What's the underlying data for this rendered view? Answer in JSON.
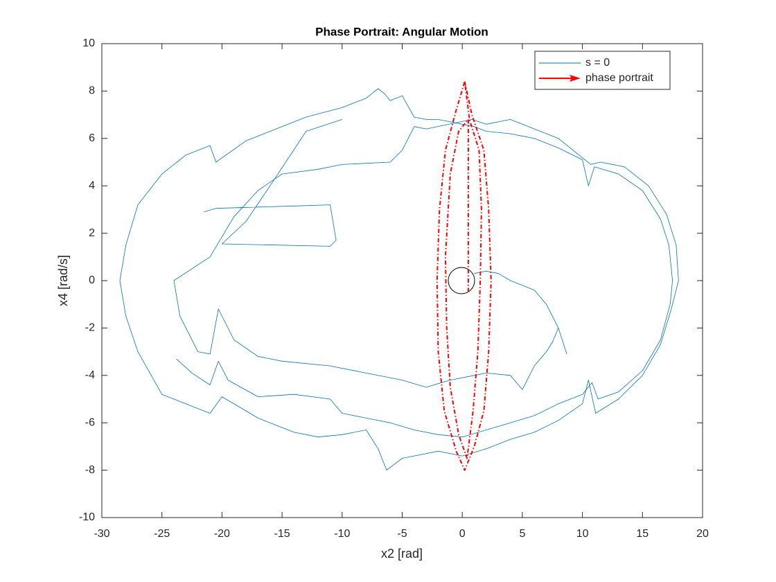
{
  "chart_data": {
    "type": "line",
    "title": "Phase Portrait: Angular Motion",
    "x_label": "x2 [rad]",
    "y_label": "x4 [rad/s]",
    "xlim": [
      -30,
      20
    ],
    "ylim": [
      -10,
      10
    ],
    "xticks": [
      -30,
      -25,
      -20,
      -15,
      -10,
      -5,
      0,
      5,
      10,
      15,
      20
    ],
    "yticks": [
      -10,
      -8,
      -6,
      -4,
      -2,
      0,
      2,
      4,
      6,
      8,
      10
    ],
    "grid": false,
    "legend": "upper right",
    "series": [
      {
        "name": "s = 0",
        "color": "#0072bd",
        "style": "solid",
        "x": [
          -23.8,
          -22.5,
          -21,
          -20.3,
          -19.5,
          -17,
          -14,
          -11,
          -10,
          -8,
          -6,
          -4,
          -2,
          0,
          2,
          4,
          6,
          8,
          10,
          10.8,
          11.3,
          13,
          15,
          16.5,
          17.3,
          17.5,
          17.2,
          16.5,
          15,
          13,
          11,
          10.5,
          10,
          8,
          6,
          4,
          2,
          1,
          0,
          -2,
          -3,
          -4,
          -5,
          -6,
          -6.5,
          -7,
          -8,
          -10,
          -13,
          -16,
          -18,
          -20.5,
          -21,
          -23,
          -25,
          -27,
          -28,
          -28.5,
          -28,
          -27,
          -25,
          -22,
          -21,
          -20,
          -17,
          -14,
          -12,
          -10,
          -8,
          -7,
          -6.3,
          -5,
          -4,
          -2,
          0,
          2,
          4,
          6,
          8,
          10,
          10.5,
          11.1,
          13,
          15,
          16.5,
          17.4,
          18,
          17.8,
          17,
          15.5,
          13.5,
          11.5,
          10.7,
          8,
          6,
          4,
          2,
          0.8,
          -3,
          -4,
          -5,
          -6,
          -10,
          -12,
          -15,
          -17,
          -19,
          -21,
          -24,
          -23.5,
          -22,
          -21,
          -20.3,
          -19,
          -17,
          -15,
          -11,
          -8,
          -5,
          -3,
          -1,
          1,
          2,
          4,
          5,
          6,
          7,
          7.5,
          8,
          8.7,
          null,
          1,
          2,
          3,
          4,
          5,
          6,
          7,
          8,
          8.7,
          null,
          -21.5,
          -20.5,
          -14,
          -11,
          -10.5,
          -11,
          -20,
          -18,
          -16,
          -13,
          -10
        ],
        "y": [
          -3.3,
          -3.9,
          -4.4,
          -3.4,
          -4.2,
          -4.9,
          -4.8,
          -5.0,
          -5.6,
          -5.8,
          -6.0,
          -6.3,
          -6.5,
          -6.6,
          -6.3,
          -6.0,
          -5.7,
          -5.2,
          -4.8,
          -4.3,
          -5.0,
          -4.7,
          -3.8,
          -2.5,
          -1.0,
          0,
          1.5,
          2.6,
          3.8,
          4.5,
          4.8,
          4.0,
          5.1,
          5.6,
          6.0,
          6.2,
          6.3,
          6.5,
          6.6,
          6.8,
          6.8,
          6.9,
          7.8,
          7.6,
          7.9,
          8.1,
          7.7,
          7.3,
          6.9,
          6.3,
          5.9,
          5.0,
          5.7,
          5.3,
          4.5,
          3.2,
          1.5,
          0,
          -1.5,
          -3.0,
          -4.8,
          -5.4,
          -5.6,
          -4.9,
          -5.8,
          -6.4,
          -6.6,
          -6.5,
          -6.3,
          -7.1,
          -8.0,
          -7.5,
          -7.4,
          -7.2,
          -7.4,
          -7.1,
          -6.7,
          -6.4,
          -5.9,
          -5.2,
          -4.2,
          -5.6,
          -5.0,
          -4.0,
          -2.7,
          -1.2,
          0,
          1.5,
          2.8,
          4.0,
          4.8,
          5.0,
          4.9,
          6.0,
          6.4,
          6.8,
          6.6,
          6.8,
          6.4,
          6.5,
          5.5,
          5.0,
          4.9,
          4.7,
          4.5,
          3.8,
          2.7,
          1.0,
          0,
          -1.5,
          -3.0,
          -3.1,
          -1.2,
          -2.5,
          -3.2,
          -3.4,
          -3.6,
          -3.9,
          -4.2,
          -4.5,
          -4.2,
          -4.0,
          -3.9,
          -4.0,
          -4.6,
          -3.6,
          -3.0,
          -2.6,
          -2.0,
          -3.1,
          null,
          0.3,
          0.4,
          0.3,
          0,
          -0.2,
          -0.4,
          -1.0,
          -2.0,
          -3.1,
          null,
          2.9,
          3.05,
          3.15,
          3.2,
          1.7,
          1.45,
          1.55,
          2.5,
          4.0,
          6.3,
          6.8
        ]
      },
      {
        "name": "phase portrait",
        "color": "#ff0000",
        "style": "dashdot",
        "x": [
          0.2,
          0.8,
          1.8,
          2.2,
          2.4,
          2.2,
          1.8,
          1,
          0.2,
          -0.5,
          -1.5,
          -2,
          -2.1,
          -1.9,
          -1.4,
          -0.5,
          0.2,
          0.6,
          1.4,
          1.6,
          1.5,
          1.3,
          0.9,
          0.4,
          -0.3,
          -1,
          -1.3,
          -1.4,
          -1,
          -0.3,
          0.5,
          0.5,
          0.5
        ],
        "y": [
          8.4,
          7.0,
          5.5,
          3,
          0,
          -3,
          -5.5,
          -7,
          -8,
          -7.2,
          -5.5,
          -3,
          0,
          3,
          5.5,
          7.2,
          8.4,
          6.8,
          5.5,
          3,
          0,
          -3,
          -5.5,
          -7.5,
          -6.5,
          -4.5,
          -2,
          1,
          4.5,
          6.3,
          6.8,
          0.5,
          -0.5
        ]
      }
    ]
  }
}
